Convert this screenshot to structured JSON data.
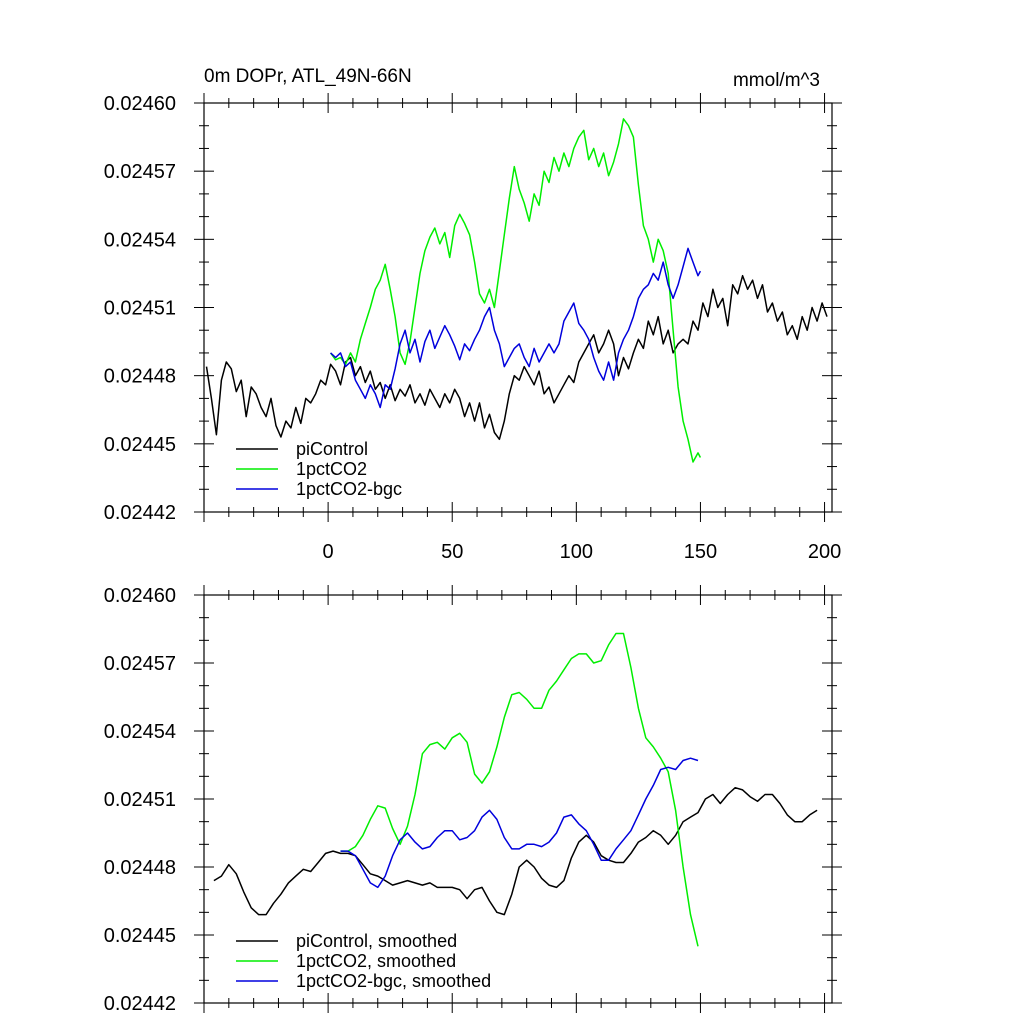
{
  "chart_data": [
    {
      "type": "line",
      "title": "0m DOPr, ATL_49N-66N",
      "units": "mmol/m^3",
      "xlim": [
        -50,
        203
      ],
      "ylim": [
        0.02442,
        0.0246
      ],
      "xticks": [
        0,
        50,
        100,
        150,
        200
      ],
      "xtick_labels": [
        "0",
        "50",
        "100",
        "150",
        "200"
      ],
      "yticks": [
        0.02442,
        0.02445,
        0.02448,
        0.02451,
        0.02454,
        0.02457,
        0.0246
      ],
      "ytick_labels": [
        "0.02442",
        "0.02445",
        "0.02448",
        "0.02451",
        "0.02454",
        "0.02457",
        "0.02460"
      ],
      "legend": {
        "placement": "bottom-left"
      },
      "series": [
        {
          "name": "piControl",
          "color": "#000000",
          "x": [
            -49,
            -47,
            -45,
            -43,
            -41,
            -39,
            -37,
            -35,
            -33,
            -31,
            -29,
            -27,
            -25,
            -23,
            -21,
            -19,
            -17,
            -15,
            -13,
            -11,
            -9,
            -7,
            -5,
            -3,
            -1,
            1,
            3,
            5,
            7,
            9,
            11,
            13,
            15,
            17,
            19,
            21,
            23,
            25,
            27,
            29,
            31,
            33,
            35,
            37,
            39,
            41,
            43,
            45,
            47,
            49,
            51,
            53,
            55,
            57,
            59,
            61,
            63,
            65,
            67,
            69,
            71,
            73,
            75,
            77,
            79,
            81,
            83,
            85,
            87,
            89,
            91,
            93,
            95,
            97,
            99,
            101,
            103,
            105,
            107,
            109,
            111,
            113,
            115,
            117,
            119,
            121,
            123,
            125,
            127,
            129,
            131,
            133,
            135,
            137,
            139,
            141,
            143,
            145,
            147,
            149,
            151,
            153,
            155,
            157,
            159,
            161,
            163,
            165,
            167,
            169,
            171,
            173,
            175,
            177,
            179,
            181,
            183,
            185,
            187,
            189,
            191,
            193,
            195,
            197,
            199,
            201
          ],
          "values": [
            0.024484,
            0.02447,
            0.024454,
            0.024478,
            0.024486,
            0.024483,
            0.024473,
            0.024478,
            0.024462,
            0.024475,
            0.024472,
            0.024466,
            0.024462,
            0.02447,
            0.024458,
            0.024453,
            0.02446,
            0.024457,
            0.024466,
            0.024459,
            0.02447,
            0.024468,
            0.024472,
            0.024478,
            0.024476,
            0.024485,
            0.024482,
            0.024476,
            0.024486,
            0.024488,
            0.02448,
            0.024484,
            0.024477,
            0.024482,
            0.024474,
            0.024477,
            0.02447,
            0.024476,
            0.024469,
            0.024474,
            0.024471,
            0.024476,
            0.024468,
            0.024472,
            0.024467,
            0.024474,
            0.02447,
            0.024466,
            0.024472,
            0.024468,
            0.024474,
            0.02447,
            0.024462,
            0.024468,
            0.02446,
            0.024468,
            0.024457,
            0.024463,
            0.024455,
            0.024452,
            0.02446,
            0.024472,
            0.02448,
            0.024478,
            0.024484,
            0.02448,
            0.024476,
            0.024482,
            0.024472,
            0.024475,
            0.024468,
            0.024472,
            0.024476,
            0.02448,
            0.024477,
            0.024486,
            0.02449,
            0.024494,
            0.024498,
            0.02449,
            0.024494,
            0.0245,
            0.024494,
            0.02448,
            0.024488,
            0.024483,
            0.02449,
            0.024496,
            0.024492,
            0.024504,
            0.024498,
            0.024506,
            0.024494,
            0.0245,
            0.02449,
            0.024494,
            0.024496,
            0.024494,
            0.024504,
            0.0245,
            0.024512,
            0.024506,
            0.024518,
            0.02451,
            0.024514,
            0.024502,
            0.02452,
            0.024516,
            0.024524,
            0.024518,
            0.024522,
            0.024514,
            0.02452,
            0.024508,
            0.024512,
            0.024504,
            0.024508,
            0.024498,
            0.024502,
            0.024496,
            0.024506,
            0.0245,
            0.02451,
            0.024504,
            0.024512,
            0.024506
          ]
        },
        {
          "name": "1pctCO2",
          "color": "#00ee00",
          "x": [
            1,
            3,
            5,
            7,
            9,
            11,
            13,
            15,
            17,
            19,
            21,
            23,
            25,
            27,
            29,
            31,
            33,
            35,
            37,
            39,
            41,
            43,
            45,
            47,
            49,
            51,
            53,
            55,
            57,
            59,
            61,
            63,
            65,
            67,
            69,
            71,
            73,
            75,
            77,
            79,
            81,
            83,
            85,
            87,
            89,
            91,
            93,
            95,
            97,
            99,
            101,
            103,
            105,
            107,
            109,
            111,
            113,
            115,
            117,
            119,
            121,
            123,
            125,
            127,
            129,
            131,
            133,
            135,
            137,
            139,
            141,
            143,
            145,
            147,
            149,
            150
          ],
          "values": [
            0.02449,
            0.024487,
            0.024488,
            0.024485,
            0.02449,
            0.024486,
            0.024496,
            0.024503,
            0.02451,
            0.024518,
            0.024522,
            0.024529,
            0.024518,
            0.024506,
            0.02449,
            0.024485,
            0.024495,
            0.02451,
            0.024525,
            0.024535,
            0.024541,
            0.024545,
            0.024538,
            0.024543,
            0.024532,
            0.024546,
            0.024551,
            0.024547,
            0.024542,
            0.02453,
            0.024516,
            0.024512,
            0.024518,
            0.02451,
            0.024526,
            0.024542,
            0.024558,
            0.024572,
            0.024562,
            0.024556,
            0.024548,
            0.02456,
            0.024555,
            0.02457,
            0.024565,
            0.024576,
            0.02457,
            0.024578,
            0.024572,
            0.02458,
            0.024585,
            0.024588,
            0.024575,
            0.02458,
            0.024572,
            0.024578,
            0.024568,
            0.024574,
            0.024582,
            0.024593,
            0.02459,
            0.024585,
            0.024564,
            0.024546,
            0.02454,
            0.02453,
            0.02454,
            0.024535,
            0.024525,
            0.0245,
            0.024475,
            0.02446,
            0.024452,
            0.024442,
            0.024446,
            0.024444
          ]
        },
        {
          "name": "1pctCO2-bgc",
          "color": "#0000dd",
          "x": [
            1,
            3,
            5,
            7,
            9,
            11,
            13,
            15,
            17,
            19,
            21,
            23,
            25,
            27,
            29,
            31,
            33,
            35,
            37,
            39,
            41,
            43,
            45,
            47,
            49,
            51,
            53,
            55,
            57,
            59,
            61,
            63,
            65,
            67,
            69,
            71,
            73,
            75,
            77,
            79,
            81,
            83,
            85,
            87,
            89,
            91,
            93,
            95,
            97,
            99,
            101,
            103,
            105,
            107,
            109,
            111,
            113,
            115,
            117,
            119,
            121,
            123,
            125,
            127,
            129,
            131,
            133,
            135,
            137,
            139,
            141,
            143,
            145,
            147,
            149,
            150
          ],
          "values": [
            0.02449,
            0.024488,
            0.02449,
            0.024484,
            0.024486,
            0.024478,
            0.024474,
            0.02447,
            0.024476,
            0.024472,
            0.024466,
            0.024476,
            0.024474,
            0.024483,
            0.024494,
            0.0245,
            0.02449,
            0.024496,
            0.024486,
            0.024495,
            0.0245,
            0.024492,
            0.024497,
            0.024502,
            0.024498,
            0.024493,
            0.024487,
            0.024494,
            0.024491,
            0.024496,
            0.0245,
            0.024506,
            0.02451,
            0.0245,
            0.024494,
            0.024484,
            0.024488,
            0.024492,
            0.024494,
            0.024488,
            0.024484,
            0.024492,
            0.024486,
            0.02449,
            0.024494,
            0.02449,
            0.024494,
            0.024504,
            0.024508,
            0.024512,
            0.024503,
            0.0245,
            0.024496,
            0.024488,
            0.024482,
            0.024478,
            0.024486,
            0.024478,
            0.02449,
            0.024496,
            0.0245,
            0.024506,
            0.024514,
            0.024518,
            0.02452,
            0.024525,
            0.024522,
            0.02453,
            0.02452,
            0.024514,
            0.02452,
            0.024528,
            0.024536,
            0.02453,
            0.024524,
            0.024526
          ]
        }
      ]
    },
    {
      "type": "line",
      "title": "",
      "units": "",
      "xlim": [
        -50,
        203
      ],
      "ylim": [
        0.02442,
        0.0246
      ],
      "xticks": [
        0,
        50,
        100,
        150,
        200
      ],
      "xtick_labels": [],
      "yticks": [
        0.02442,
        0.02445,
        0.02448,
        0.02451,
        0.02454,
        0.02457,
        0.0246
      ],
      "ytick_labels": [
        "0.02442",
        "0.02445",
        "0.02448",
        "0.02451",
        "0.02454",
        "0.02457",
        "0.02460"
      ],
      "legend": {
        "placement": "bottom-left"
      },
      "series": [
        {
          "name": "piControl, smoothed",
          "color": "#000000",
          "x": [
            -46,
            -43,
            -40,
            -37,
            -34,
            -31,
            -28,
            -25,
            -22,
            -19,
            -16,
            -13,
            -10,
            -7,
            -4,
            -1,
            2,
            5,
            8,
            11,
            14,
            17,
            20,
            23,
            26,
            29,
            32,
            35,
            38,
            41,
            44,
            47,
            50,
            53,
            56,
            59,
            62,
            65,
            68,
            71,
            74,
            77,
            80,
            83,
            86,
            89,
            92,
            95,
            98,
            101,
            104,
            107,
            110,
            113,
            116,
            119,
            122,
            125,
            128,
            131,
            134,
            137,
            140,
            143,
            146,
            149,
            152,
            155,
            158,
            161,
            164,
            167,
            170,
            173,
            176,
            179,
            182,
            185,
            188,
            191,
            194,
            197
          ],
          "values": [
            0.024474,
            0.024476,
            0.024481,
            0.024477,
            0.024469,
            0.024462,
            0.024459,
            0.024459,
            0.024464,
            0.024468,
            0.024473,
            0.024476,
            0.024479,
            0.024478,
            0.024482,
            0.024486,
            0.024487,
            0.024486,
            0.024486,
            0.024485,
            0.024481,
            0.024477,
            0.024476,
            0.024474,
            0.024472,
            0.024473,
            0.024474,
            0.024473,
            0.024472,
            0.024473,
            0.024471,
            0.024471,
            0.024471,
            0.02447,
            0.024466,
            0.02447,
            0.024471,
            0.024465,
            0.02446,
            0.024459,
            0.024468,
            0.02448,
            0.024483,
            0.02448,
            0.024475,
            0.024472,
            0.024471,
            0.024474,
            0.024484,
            0.024491,
            0.024494,
            0.024491,
            0.024485,
            0.024483,
            0.024482,
            0.024482,
            0.024486,
            0.024491,
            0.024493,
            0.024496,
            0.024494,
            0.02449,
            0.024494,
            0.0245,
            0.024502,
            0.024504,
            0.02451,
            0.024512,
            0.024508,
            0.024512,
            0.024515,
            0.024514,
            0.024511,
            0.024509,
            0.024512,
            0.024512,
            0.024508,
            0.024503,
            0.0245,
            0.0245,
            0.024503,
            0.024505
          ]
        },
        {
          "name": "1pctCO2, smoothed",
          "color": "#00ee00",
          "x": [
            5,
            8,
            11,
            14,
            17,
            20,
            23,
            26,
            29,
            32,
            35,
            38,
            41,
            44,
            47,
            50,
            53,
            56,
            59,
            62,
            65,
            68,
            71,
            74,
            77,
            80,
            83,
            86,
            89,
            92,
            95,
            98,
            101,
            104,
            107,
            110,
            113,
            116,
            119,
            122,
            125,
            128,
            131,
            134,
            137,
            140,
            143,
            146,
            149
          ],
          "values": [
            0.024487,
            0.024487,
            0.024489,
            0.024494,
            0.024501,
            0.024507,
            0.024506,
            0.024497,
            0.02449,
            0.024498,
            0.024512,
            0.02453,
            0.024534,
            0.024535,
            0.024532,
            0.024537,
            0.024539,
            0.024535,
            0.024521,
            0.024517,
            0.024522,
            0.024533,
            0.024546,
            0.024556,
            0.024557,
            0.024554,
            0.02455,
            0.02455,
            0.024558,
            0.024562,
            0.024567,
            0.024572,
            0.024574,
            0.024574,
            0.02457,
            0.024571,
            0.024578,
            0.024583,
            0.024583,
            0.024568,
            0.02455,
            0.024537,
            0.024533,
            0.024528,
            0.024522,
            0.024505,
            0.02448,
            0.024459,
            0.024445
          ]
        },
        {
          "name": "1pctCO2-bgc, smoothed",
          "color": "#0000dd",
          "x": [
            5,
            8,
            11,
            14,
            17,
            20,
            23,
            26,
            29,
            32,
            35,
            38,
            41,
            44,
            47,
            50,
            53,
            56,
            59,
            62,
            65,
            68,
            71,
            74,
            77,
            80,
            83,
            86,
            89,
            92,
            95,
            98,
            101,
            104,
            107,
            110,
            113,
            116,
            119,
            122,
            125,
            128,
            131,
            134,
            137,
            140,
            143,
            146,
            149
          ],
          "values": [
            0.024487,
            0.024487,
            0.024485,
            0.024479,
            0.024473,
            0.024471,
            0.024476,
            0.024485,
            0.024492,
            0.024495,
            0.024491,
            0.024488,
            0.024489,
            0.024493,
            0.024496,
            0.024496,
            0.024492,
            0.024493,
            0.024496,
            0.024502,
            0.024505,
            0.024501,
            0.024493,
            0.024488,
            0.024488,
            0.02449,
            0.02449,
            0.024489,
            0.024491,
            0.024495,
            0.024502,
            0.024503,
            0.024499,
            0.024496,
            0.02449,
            0.024483,
            0.024483,
            0.024488,
            0.024492,
            0.024496,
            0.024503,
            0.02451,
            0.024516,
            0.024523,
            0.024524,
            0.024523,
            0.024527,
            0.024528,
            0.024527
          ]
        }
      ]
    }
  ]
}
